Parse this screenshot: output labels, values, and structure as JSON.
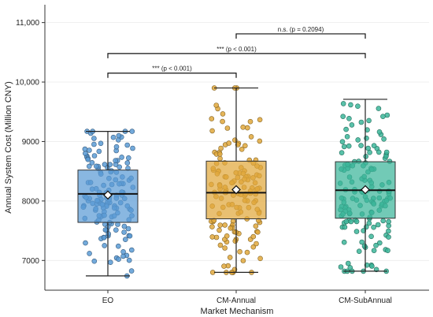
{
  "chart_data": {
    "type": "box",
    "xlabel": "Market Mechanism",
    "ylabel": "Annual System Cost (Million CNY)",
    "ylim": [
      6500,
      11300
    ],
    "yticks": [
      7000,
      8000,
      9000,
      10000,
      11000
    ],
    "ytick_labels": [
      "7000",
      "8000",
      "9000",
      "10,000",
      "11,000"
    ],
    "grid": "horizontal, light",
    "categories": [
      "EO",
      "CM-Annual",
      "CM-SubAnnual"
    ],
    "series": [
      {
        "category": "EO",
        "color": "#5B9BD5",
        "min": 6740,
        "q1": 7640,
        "median": 8120,
        "mean": 8100,
        "q3": 8520,
        "max": 9170
      },
      {
        "category": "CM-Annual",
        "color": "#E0A83C",
        "min": 6800,
        "q1": 7700,
        "median": 8140,
        "mean": 8190,
        "q3": 8670,
        "max": 9900
      },
      {
        "category": "CM-SubAnnual",
        "color": "#3CB69A",
        "min": 6820,
        "q1": 7710,
        "median": 8180,
        "mean": 8190,
        "q3": 8660,
        "max": 9710
      }
    ],
    "points_per_group": 150,
    "significance": [
      {
        "from": "CM-Annual",
        "to": "CM-SubAnnual",
        "y": 10810,
        "label": "n.s. (p = 0.2094)"
      },
      {
        "from": "EO",
        "to": "CM-SubAnnual",
        "y": 10480,
        "label": "*** (p < 0.001)"
      },
      {
        "from": "EO",
        "to": "CM-Annual",
        "y": 10150,
        "label": "*** (p < 0.001)"
      }
    ]
  }
}
